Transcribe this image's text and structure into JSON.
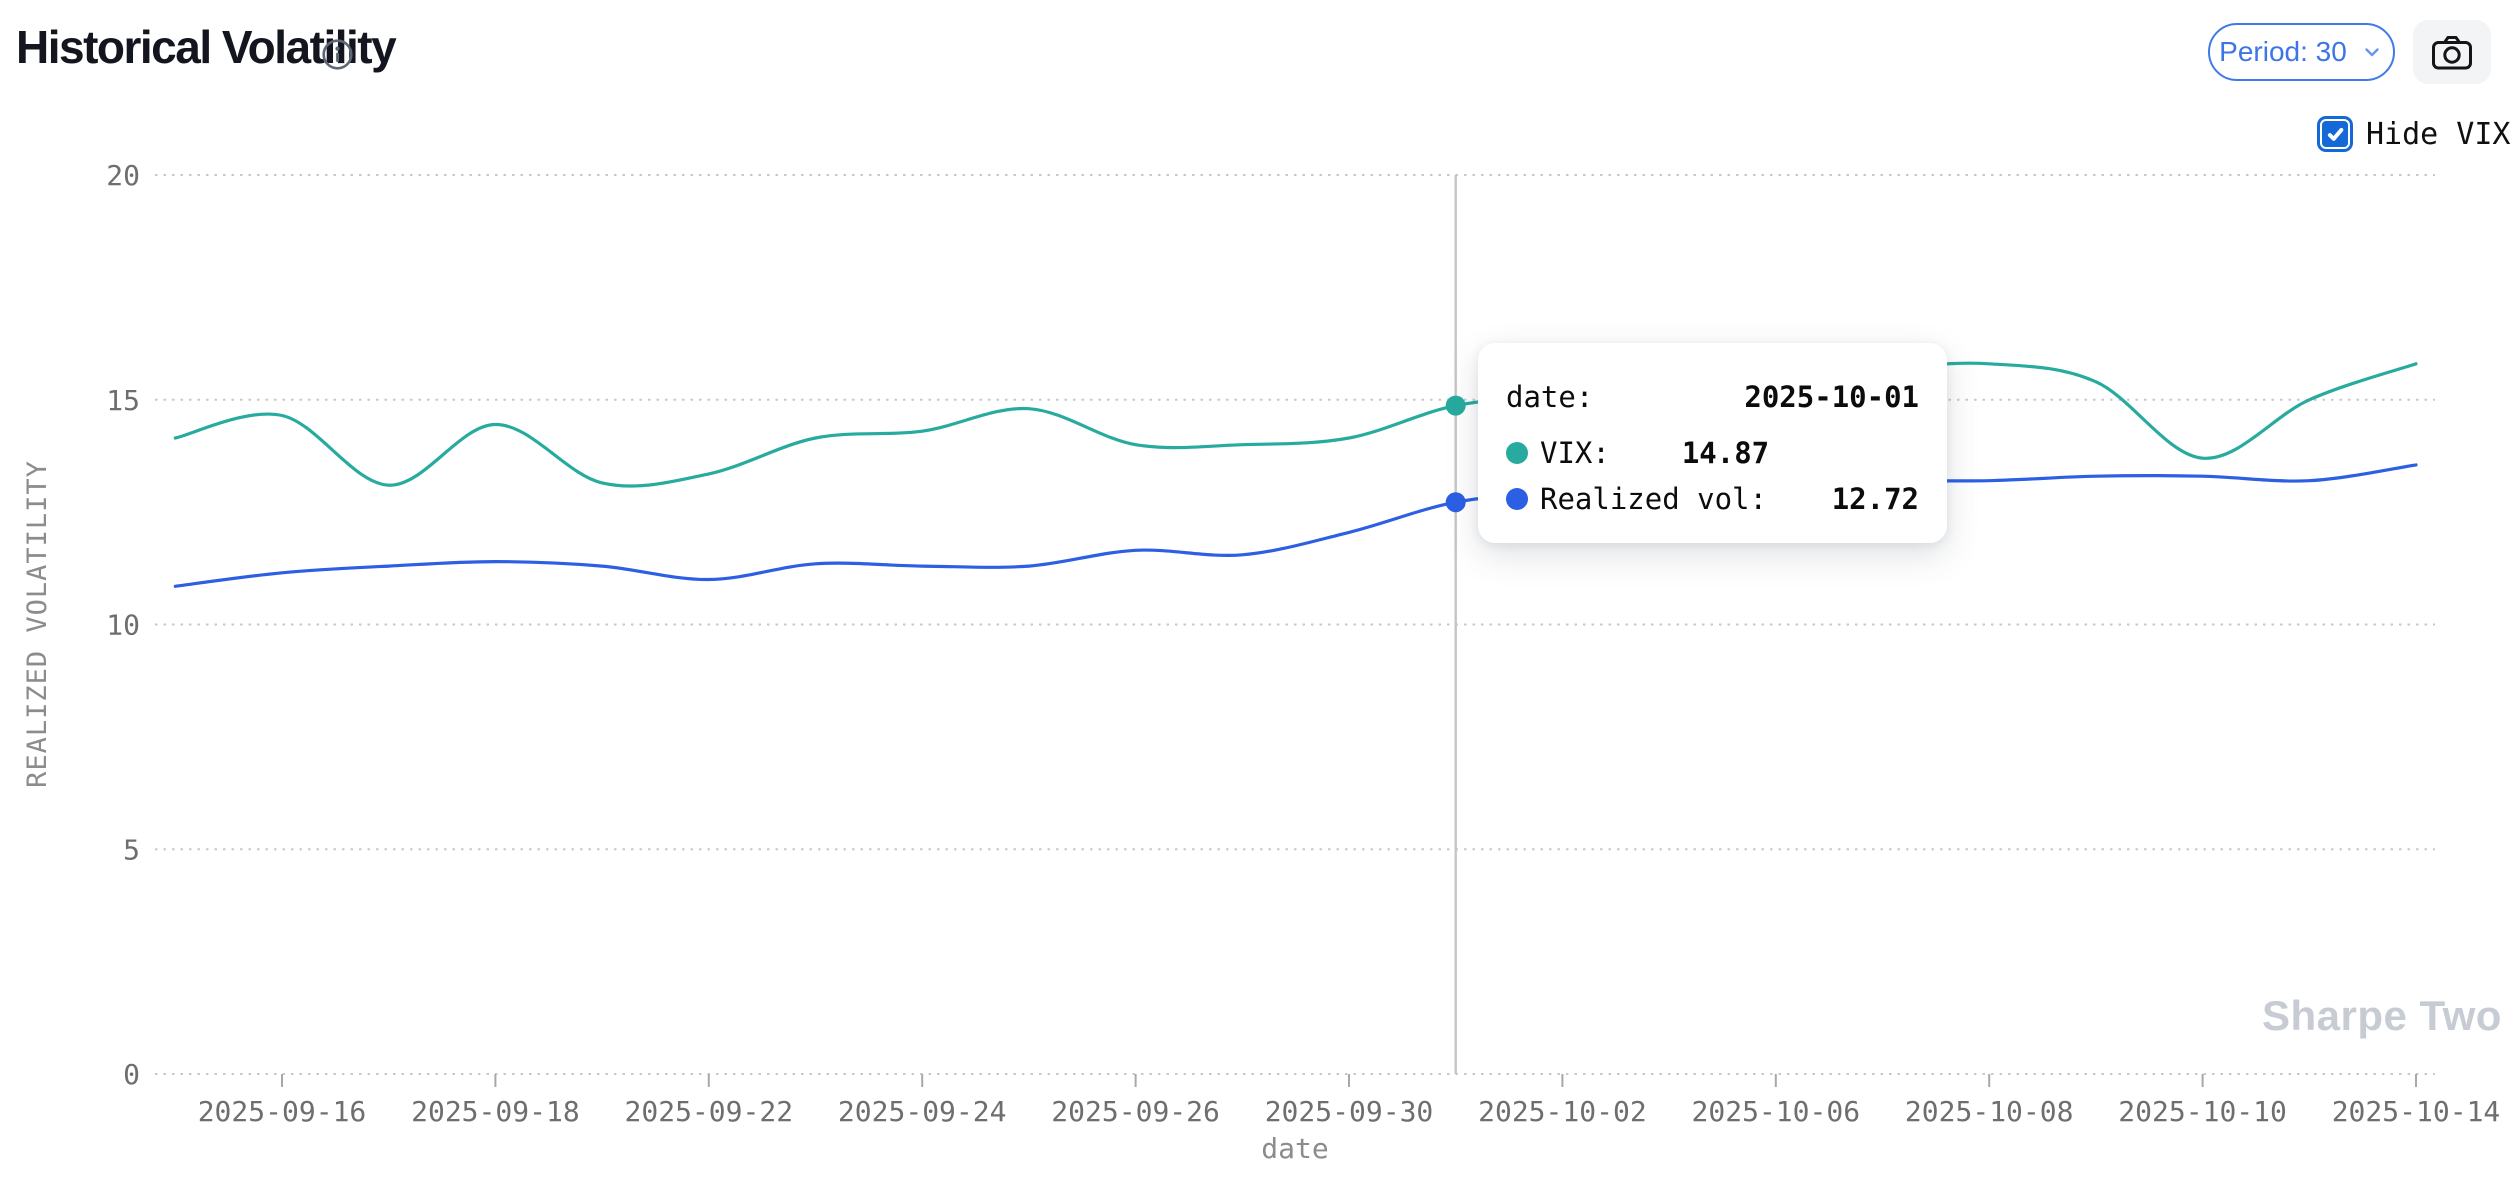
{
  "header": {
    "title": "Historical Volatility"
  },
  "controls": {
    "period_label": "Period: 30",
    "hide_vix_label": "Hide VIX",
    "hide_vix_checked": true
  },
  "tooltip": {
    "date_label": "date:",
    "date_value": "2025-10-01",
    "series": [
      {
        "label": "VIX:",
        "value": "14.87",
        "color": "#27ab9e"
      },
      {
        "label": "Realized vol:",
        "value": "12.72",
        "color": "#2c5fe4"
      }
    ]
  },
  "watermark": "Sharpe Two",
  "colors": {
    "vix_line": "#27ab9e",
    "realized_line": "#2c5fe4",
    "accent_blue": "#3d74e6",
    "checkbox_blue": "#1569d7",
    "grid": "#c8c8c8",
    "axis_text": "#6e6e6e",
    "crosshair": "#c5c5c5"
  },
  "chart_data": {
    "type": "line",
    "x": [
      "2025-09-15",
      "2025-09-16",
      "2025-09-17",
      "2025-09-18",
      "2025-09-19",
      "2025-09-22",
      "2025-09-23",
      "2025-09-24",
      "2025-09-25",
      "2025-09-26",
      "2025-09-29",
      "2025-09-30",
      "2025-10-01",
      "2025-10-02",
      "2025-10-03",
      "2025-10-06",
      "2025-10-07",
      "2025-10-08",
      "2025-10-09",
      "2025-10-10",
      "2025-10-13",
      "2025-10-14"
    ],
    "series": [
      {
        "name": "VIX",
        "color": "#27ab9e",
        "values": [
          14.15,
          14.65,
          13.1,
          14.45,
          13.15,
          13.35,
          14.15,
          14.3,
          14.8,
          14.0,
          14.0,
          14.15,
          14.87,
          15.1,
          15.35,
          15.55,
          15.7,
          15.8,
          15.4,
          13.7,
          15.0,
          15.8
        ]
      },
      {
        "name": "Realized vol",
        "color": "#2c5fe4",
        "values": [
          10.85,
          11.15,
          11.3,
          11.4,
          11.3,
          11.0,
          11.35,
          11.3,
          11.3,
          11.65,
          11.55,
          12.05,
          12.72,
          12.95,
          13.1,
          13.15,
          13.2,
          13.2,
          13.3,
          13.3,
          13.2,
          13.55
        ]
      }
    ],
    "xlabel": "date",
    "ylabel": "REALIZED VOLATILITY",
    "ylim": [
      0,
      20
    ],
    "yticks": [
      0,
      5,
      10,
      15,
      20
    ],
    "xtick_labels": [
      "2025-09-16",
      "2025-09-18",
      "2025-09-22",
      "2025-09-24",
      "2025-09-26",
      "2025-09-30",
      "2025-10-02",
      "2025-10-06",
      "2025-10-08",
      "2025-10-10",
      "2025-10-14"
    ],
    "grid": "horizontal-dotted",
    "legend": "none",
    "hover": {
      "index": 12,
      "date": "2025-10-01",
      "VIX": 14.87,
      "Realized vol": 12.72
    }
  }
}
